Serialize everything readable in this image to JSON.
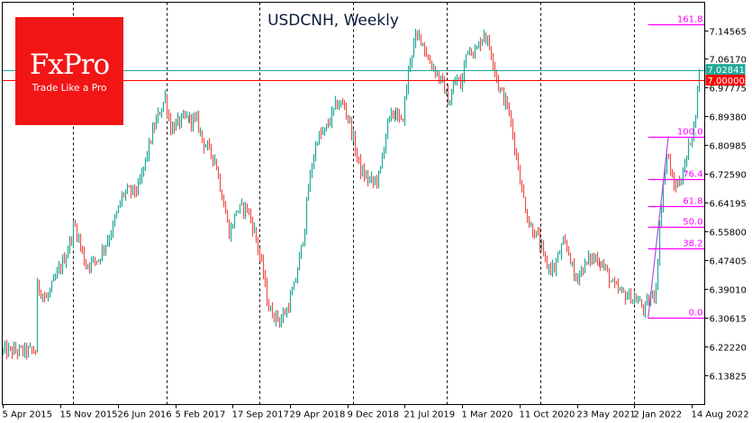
{
  "logo": {
    "brand": "FxPro",
    "tagline": "Trade Like a Pro"
  },
  "chart_data": {
    "type": "bar",
    "title": "USDCNH, Weekly",
    "symbol": "USDCNH",
    "timeframe": "Weekly",
    "ylim": [
      6.054,
      7.227
    ],
    "y_ticks": [
      "7.14565",
      "7.06170",
      "6.97775",
      "6.89380",
      "6.80985",
      "6.72590",
      "6.64195",
      "6.55800",
      "6.47405",
      "6.39010",
      "6.30615",
      "6.22220",
      "6.13825"
    ],
    "x_ticks": [
      {
        "date": "2015-04-05",
        "label": "5 Apr 2015"
      },
      {
        "date": "2015-11-15",
        "label": "15 Nov 2015"
      },
      {
        "date": "2016-06-26",
        "label": "26 Jun 2016"
      },
      {
        "date": "2017-02-05",
        "label": "5 Feb 2017"
      },
      {
        "date": "2017-09-17",
        "label": "17 Sep 2017"
      },
      {
        "date": "2018-04-29",
        "label": "29 Apr 2018"
      },
      {
        "date": "2018-12-09",
        "label": "9 Dec 2018"
      },
      {
        "date": "2019-07-21",
        "label": "21 Jul 2019"
      },
      {
        "date": "2020-03-01",
        "label": "1 Mar 2020"
      },
      {
        "date": "2020-10-11",
        "label": "11 Oct 2020"
      },
      {
        "date": "2021-05-23",
        "label": "23 May 2021"
      },
      {
        "date": "2022-01-02",
        "label": "2 Jan 2022"
      },
      {
        "date": "2022-08-14",
        "label": "14 Aug 2022"
      }
    ],
    "year_separators": [
      "2016-01-01",
      "2017-01-01",
      "2018-01-01",
      "2019-01-01",
      "2020-01-01",
      "2021-01-01",
      "2022-01-01"
    ],
    "weekly_close_path": [
      [
        "2015-04-05",
        6.21
      ],
      [
        "2015-08-09",
        6.21
      ],
      [
        "2015-08-16",
        6.4
      ],
      [
        "2015-09-20",
        6.36
      ],
      [
        "2015-12-10",
        6.5
      ],
      [
        "2016-01-08",
        6.58
      ],
      [
        "2016-02-20",
        6.46
      ],
      [
        "2016-04-10",
        6.48
      ],
      [
        "2016-05-30",
        6.56
      ],
      [
        "2016-07-15",
        6.67
      ],
      [
        "2016-09-10",
        6.68
      ],
      [
        "2016-11-10",
        6.86
      ],
      [
        "2016-12-25",
        6.95
      ],
      [
        "2017-01-15",
        6.86
      ],
      [
        "2017-03-15",
        6.89
      ],
      [
        "2017-05-01",
        6.88
      ],
      [
        "2017-05-25",
        6.82
      ],
      [
        "2017-07-10",
        6.77
      ],
      [
        "2017-08-10",
        6.65
      ],
      [
        "2017-09-05",
        6.55
      ],
      [
        "2017-10-01",
        6.62
      ],
      [
        "2017-11-10",
        6.63
      ],
      [
        "2017-12-10",
        6.56
      ],
      [
        "2018-01-10",
        6.45
      ],
      [
        "2018-02-05",
        6.33
      ],
      [
        "2018-03-20",
        6.3
      ],
      [
        "2018-04-15",
        6.33
      ],
      [
        "2018-05-15",
        6.4
      ],
      [
        "2018-06-20",
        6.55
      ],
      [
        "2018-07-10",
        6.7
      ],
      [
        "2018-08-10",
        6.83
      ],
      [
        "2018-09-10",
        6.85
      ],
      [
        "2018-10-25",
        6.93
      ],
      [
        "2018-11-20",
        6.93
      ],
      [
        "2018-12-15",
        6.88
      ],
      [
        "2019-01-05",
        6.8
      ],
      [
        "2019-01-30",
        6.73
      ],
      [
        "2019-03-15",
        6.7
      ],
      [
        "2019-04-10",
        6.72
      ],
      [
        "2019-05-10",
        6.87
      ],
      [
        "2019-06-10",
        6.91
      ],
      [
        "2019-07-10",
        6.87
      ],
      [
        "2019-08-10",
        7.06
      ],
      [
        "2019-09-01",
        7.12
      ],
      [
        "2019-09-20",
        7.13
      ],
      [
        "2019-10-20",
        7.06
      ],
      [
        "2019-11-15",
        7.03
      ],
      [
        "2019-12-20",
        6.98
      ],
      [
        "2020-01-10",
        6.93
      ],
      [
        "2020-02-05",
        7.01
      ],
      [
        "2020-02-25",
        6.98
      ],
      [
        "2020-03-20",
        7.1
      ],
      [
        "2020-04-20",
        7.08
      ],
      [
        "2020-05-25",
        7.14
      ],
      [
        "2020-06-25",
        7.07
      ],
      [
        "2020-07-20",
        6.98
      ],
      [
        "2020-08-25",
        6.92
      ],
      [
        "2020-09-25",
        6.79
      ],
      [
        "2020-10-20",
        6.67
      ],
      [
        "2020-11-15",
        6.58
      ],
      [
        "2020-12-20",
        6.54
      ],
      [
        "2021-01-20",
        6.46
      ],
      [
        "2021-02-20",
        6.45
      ],
      [
        "2021-03-25",
        6.52
      ],
      [
        "2021-04-20",
        6.5
      ],
      [
        "2021-05-10",
        6.42
      ],
      [
        "2021-06-10",
        6.45
      ],
      [
        "2021-07-10",
        6.48
      ],
      [
        "2021-08-10",
        6.48
      ],
      [
        "2021-09-10",
        6.45
      ],
      [
        "2021-10-10",
        6.4
      ],
      [
        "2021-11-10",
        6.38
      ],
      [
        "2021-12-10",
        6.37
      ],
      [
        "2022-01-10",
        6.36
      ],
      [
        "2022-02-10",
        6.33
      ],
      [
        "2022-03-01",
        6.36
      ],
      [
        "2022-03-25",
        6.38
      ],
      [
        "2022-04-20",
        6.68
      ],
      [
        "2022-05-10",
        6.79
      ],
      [
        "2022-06-01",
        6.69
      ],
      [
        "2022-06-25",
        6.7
      ],
      [
        "2022-07-20",
        6.76
      ],
      [
        "2022-08-05",
        6.82
      ],
      [
        "2022-08-25",
        6.88
      ],
      [
        "2022-09-05",
        6.97
      ],
      [
        "2022-09-15",
        7.02841
      ]
    ],
    "colors": {
      "up": "#1fa898",
      "down": "#f0504a",
      "bid_line": "#1fa898",
      "level_line": "#ff0000",
      "fib": "#ff00ff",
      "fib_trend": "#b050e0"
    },
    "horizontal_lines": [
      {
        "price": 7.02841,
        "label": "7.02841",
        "color": "#1fa898"
      },
      {
        "price": 7.0,
        "label": "7.00000",
        "color": "#ff0000"
      }
    ],
    "fibonacci": {
      "from": {
        "date": "2022-02-25",
        "price": 6.306
      },
      "to": {
        "date": "2022-05-15",
        "price": 6.836
      },
      "levels": [
        {
          "ratio": 0.0,
          "label": "0.0"
        },
        {
          "ratio": 0.382,
          "label": "38.2"
        },
        {
          "ratio": 0.5,
          "label": "50.0"
        },
        {
          "ratio": 0.618,
          "label": "61.8"
        },
        {
          "ratio": 0.764,
          "label": "76.4"
        },
        {
          "ratio": 1.0,
          "label": "100.0"
        },
        {
          "ratio": 1.618,
          "label": "161.8"
        }
      ]
    }
  }
}
